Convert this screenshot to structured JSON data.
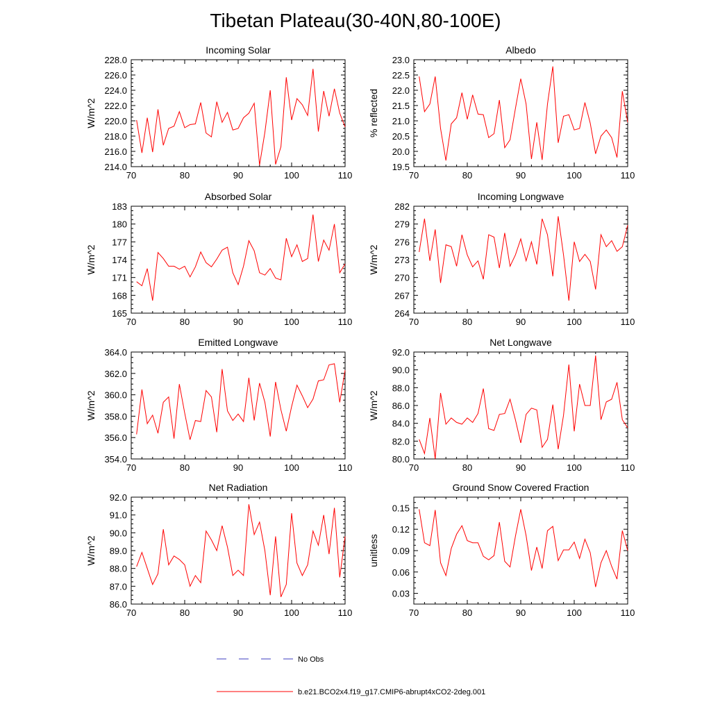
{
  "title": "Tibetan Plateau(30-40N,80-100E)",
  "colors": {
    "model": "#ff0000",
    "obs": "#3b3bbf",
    "axis": "#000000"
  },
  "legend": [
    {
      "label": "No Obs",
      "style": "dashed",
      "color": "#3b3bbf"
    },
    {
      "label": "b.e21.BCO2x4.f19_g17.CMIP6-abrupt4xCO2-2deg.001",
      "style": "solid",
      "color": "#ff0000"
    }
  ],
  "chart_data": [
    {
      "type": "line",
      "title": "Incoming Solar",
      "ylabel": "W/m^2",
      "xlim": [
        70,
        110
      ],
      "ylim": [
        214,
        228
      ],
      "xticks": [
        "70",
        "80",
        "90",
        "100",
        "110"
      ],
      "yticks": [
        "214.0",
        "216.0",
        "218.0",
        "220.0",
        "222.0",
        "224.0",
        "226.0",
        "228.0"
      ],
      "x": [
        71,
        72,
        73,
        74,
        75,
        76,
        77,
        78,
        79,
        80,
        81,
        82,
        83,
        84,
        85,
        86,
        87,
        88,
        89,
        90,
        91,
        92,
        93,
        94,
        95,
        96,
        97,
        98,
        99,
        100,
        101,
        102,
        103,
        104,
        105,
        106,
        107,
        108,
        109,
        110
      ],
      "series": [
        {
          "values": [
            220.1,
            215.8,
            220.4,
            215.9,
            221.5,
            216.8,
            219.0,
            219.3,
            221.2,
            219.1,
            219.5,
            219.6,
            222.4,
            218.4,
            217.9,
            222.5,
            219.8,
            221.1,
            218.8,
            219.0,
            220.4,
            221.0,
            222.3,
            214.2,
            218.5,
            224.0,
            214.3,
            216.6,
            225.7,
            220.1,
            222.9,
            222.1,
            220.7,
            226.8,
            218.6,
            223.9,
            220.6,
            224.2,
            221.0,
            219.2
          ]
        }
      ]
    },
    {
      "type": "line",
      "title": "Albedo",
      "ylabel": "% reflected",
      "xlim": [
        70,
        110
      ],
      "ylim": [
        19.5,
        23.0
      ],
      "xticks": [
        "70",
        "80",
        "90",
        "100",
        "110"
      ],
      "yticks": [
        "19.5",
        "20.0",
        "20.5",
        "21.0",
        "21.5",
        "22.0",
        "22.5",
        "23.0"
      ],
      "x": [
        71,
        72,
        73,
        74,
        75,
        76,
        77,
        78,
        79,
        80,
        81,
        82,
        83,
        84,
        85,
        86,
        87,
        88,
        89,
        90,
        91,
        92,
        93,
        94,
        95,
        96,
        97,
        98,
        99,
        100,
        101,
        102,
        103,
        104,
        105,
        106,
        107,
        108,
        109,
        110
      ],
      "series": [
        {
          "values": [
            22.45,
            21.3,
            21.55,
            22.45,
            20.75,
            19.7,
            20.9,
            21.1,
            21.92,
            21.05,
            21.85,
            21.22,
            21.2,
            20.45,
            20.58,
            21.68,
            20.12,
            20.38,
            21.4,
            22.38,
            21.55,
            19.75,
            20.95,
            19.72,
            21.55,
            22.78,
            20.28,
            21.15,
            21.2,
            20.7,
            20.75,
            21.6,
            20.92,
            19.92,
            20.5,
            20.7,
            20.45,
            19.8,
            21.97,
            20.95
          ]
        }
      ]
    },
    {
      "type": "line",
      "title": "Absorbed Solar",
      "ylabel": "W/m^2",
      "xlim": [
        70,
        110
      ],
      "ylim": [
        165,
        183
      ],
      "xticks": [
        "70",
        "80",
        "90",
        "100",
        "110"
      ],
      "yticks": [
        "165",
        "168",
        "171",
        "174",
        "177",
        "180",
        "183"
      ],
      "x": [
        71,
        72,
        73,
        74,
        75,
        76,
        77,
        78,
        79,
        80,
        81,
        82,
        83,
        84,
        85,
        86,
        87,
        88,
        89,
        90,
        91,
        92,
        93,
        94,
        95,
        96,
        97,
        98,
        99,
        100,
        101,
        102,
        103,
        104,
        105,
        106,
        107,
        108,
        109,
        110
      ],
      "series": [
        {
          "values": [
            170.3,
            169.6,
            172.5,
            167.1,
            175.2,
            174.2,
            172.9,
            172.9,
            172.4,
            172.9,
            171.1,
            172.8,
            175.3,
            173.5,
            172.8,
            174.1,
            175.6,
            176.1,
            171.8,
            169.8,
            172.9,
            177.2,
            175.5,
            171.8,
            171.4,
            172.5,
            170.9,
            170.6,
            177.6,
            174.5,
            176.5,
            173.7,
            174.2,
            181.6,
            173.7,
            177.3,
            175.6,
            180.0,
            171.8,
            173.3
          ]
        }
      ]
    },
    {
      "type": "line",
      "title": "Incoming Longwave",
      "ylabel": "W/m^2",
      "xlim": [
        70,
        110
      ],
      "ylim": [
        264,
        282
      ],
      "xticks": [
        "70",
        "80",
        "90",
        "100",
        "110"
      ],
      "yticks": [
        "264",
        "267",
        "270",
        "273",
        "276",
        "279",
        "282"
      ],
      "x": [
        71,
        72,
        73,
        74,
        75,
        76,
        77,
        78,
        79,
        80,
        81,
        82,
        83,
        84,
        85,
        86,
        87,
        88,
        89,
        90,
        91,
        92,
        93,
        94,
        95,
        96,
        97,
        98,
        99,
        100,
        101,
        102,
        103,
        104,
        105,
        106,
        107,
        108,
        109,
        110
      ],
      "series": [
        {
          "values": [
            274.3,
            279.9,
            272.8,
            278.1,
            269.1,
            275.5,
            275.2,
            271.9,
            277.2,
            273.8,
            271.8,
            272.8,
            269.7,
            277.2,
            276.8,
            271.6,
            277.5,
            271.9,
            273.8,
            276.5,
            272.8,
            276.0,
            272.2,
            279.9,
            277.2,
            270.2,
            280.3,
            273.8,
            266.1,
            276.0,
            272.7,
            273.9,
            272.7,
            268.0,
            277.2,
            275.2,
            276.2,
            274.4,
            275.2,
            278.8
          ]
        }
      ]
    },
    {
      "type": "line",
      "title": "Emitted Longwave",
      "ylabel": "W/m^2",
      "xlim": [
        70,
        110
      ],
      "ylim": [
        354,
        364
      ],
      "xticks": [
        "70",
        "80",
        "90",
        "100",
        "110"
      ],
      "yticks": [
        "354.0",
        "356.0",
        "358.0",
        "360.0",
        "362.0",
        "364.0"
      ],
      "x": [
        71,
        72,
        73,
        74,
        75,
        76,
        77,
        78,
        79,
        80,
        81,
        82,
        83,
        84,
        85,
        86,
        87,
        88,
        89,
        90,
        91,
        92,
        93,
        94,
        95,
        96,
        97,
        98,
        99,
        100,
        101,
        102,
        103,
        104,
        105,
        106,
        107,
        108,
        109,
        110
      ],
      "series": [
        {
          "values": [
            356.3,
            360.5,
            357.3,
            358.1,
            356.4,
            359.3,
            359.8,
            355.9,
            361.0,
            358.3,
            355.8,
            357.6,
            357.5,
            360.4,
            359.8,
            356.5,
            362.4,
            358.5,
            357.6,
            358.2,
            357.5,
            361.6,
            357.6,
            361.1,
            359.3,
            356.1,
            361.2,
            358.6,
            356.6,
            358.9,
            360.9,
            359.9,
            358.8,
            359.6,
            361.3,
            361.4,
            362.8,
            362.9,
            359.3,
            362.3
          ]
        }
      ]
    },
    {
      "type": "line",
      "title": "Net Longwave",
      "ylabel": "W/m^2",
      "xlim": [
        70,
        110
      ],
      "ylim": [
        80,
        92
      ],
      "xticks": [
        "70",
        "80",
        "90",
        "100",
        "110"
      ],
      "yticks": [
        "80.0",
        "82.0",
        "84.0",
        "86.0",
        "88.0",
        "90.0",
        "92.0"
      ],
      "x": [
        71,
        72,
        73,
        74,
        75,
        76,
        77,
        78,
        79,
        80,
        81,
        82,
        83,
        84,
        85,
        86,
        87,
        88,
        89,
        90,
        91,
        92,
        93,
        94,
        95,
        96,
        97,
        98,
        99,
        100,
        101,
        102,
        103,
        104,
        105,
        106,
        107,
        108,
        109,
        110
      ],
      "series": [
        {
          "values": [
            82.2,
            80.6,
            84.6,
            80.0,
            87.4,
            83.9,
            84.6,
            84.1,
            83.9,
            84.6,
            84.1,
            85.1,
            87.9,
            83.4,
            83.2,
            85.0,
            85.1,
            86.7,
            84.4,
            81.8,
            85.0,
            85.7,
            85.5,
            81.3,
            82.2,
            86.1,
            81.1,
            84.9,
            90.6,
            83.1,
            88.4,
            86.0,
            86.0,
            91.6,
            84.4,
            86.4,
            86.7,
            88.6,
            84.4,
            83.5
          ]
        }
      ]
    },
    {
      "type": "line",
      "title": "Net Radiation",
      "ylabel": "W/m^2",
      "xlim": [
        70,
        110
      ],
      "ylim": [
        86,
        92
      ],
      "xticks": [
        "70",
        "80",
        "90",
        "100",
        "110"
      ],
      "yticks": [
        "86.0",
        "87.0",
        "88.0",
        "89.0",
        "90.0",
        "91.0",
        "92.0"
      ],
      "x": [
        71,
        72,
        73,
        74,
        75,
        76,
        77,
        78,
        79,
        80,
        81,
        82,
        83,
        84,
        85,
        86,
        87,
        88,
        89,
        90,
        91,
        92,
        93,
        94,
        95,
        96,
        97,
        98,
        99,
        100,
        101,
        102,
        103,
        104,
        105,
        106,
        107,
        108,
        109,
        110
      ],
      "series": [
        {
          "values": [
            88.1,
            88.9,
            88.0,
            87.1,
            87.7,
            90.2,
            88.2,
            88.7,
            88.5,
            88.2,
            87.0,
            87.6,
            87.2,
            90.1,
            89.6,
            89.0,
            90.4,
            89.2,
            87.6,
            87.9,
            87.6,
            91.6,
            89.9,
            90.6,
            89.0,
            86.5,
            89.8,
            86.4,
            87.1,
            91.1,
            88.3,
            87.6,
            88.2,
            90.1,
            89.3,
            91.0,
            88.8,
            91.4,
            87.5,
            89.8
          ]
        }
      ]
    },
    {
      "type": "line",
      "title": "Ground Snow Covered Fraction",
      "ylabel": "unitless",
      "xlim": [
        70,
        110
      ],
      "ylim": [
        0.015,
        0.165
      ],
      "xticks": [
        "70",
        "80",
        "90",
        "100",
        "110"
      ],
      "yticks": [
        "0.03",
        "0.06",
        "0.09",
        "0.12",
        "0.15"
      ],
      "ytick_values": [
        0.03,
        0.06,
        0.09,
        0.12,
        0.15
      ],
      "x": [
        71,
        72,
        73,
        74,
        75,
        76,
        77,
        78,
        79,
        80,
        81,
        82,
        83,
        84,
        85,
        86,
        87,
        88,
        89,
        90,
        91,
        92,
        93,
        94,
        95,
        96,
        97,
        98,
        99,
        100,
        101,
        102,
        103,
        104,
        105,
        106,
        107,
        108,
        109,
        110
      ],
      "series": [
        {
          "values": [
            0.148,
            0.101,
            0.097,
            0.147,
            0.073,
            0.055,
            0.093,
            0.113,
            0.125,
            0.104,
            0.101,
            0.101,
            0.082,
            0.077,
            0.083,
            0.13,
            0.075,
            0.067,
            0.11,
            0.148,
            0.111,
            0.062,
            0.095,
            0.065,
            0.118,
            0.124,
            0.076,
            0.091,
            0.091,
            0.102,
            0.079,
            0.106,
            0.087,
            0.039,
            0.073,
            0.09,
            0.068,
            0.05,
            0.118,
            0.09
          ]
        }
      ]
    }
  ]
}
